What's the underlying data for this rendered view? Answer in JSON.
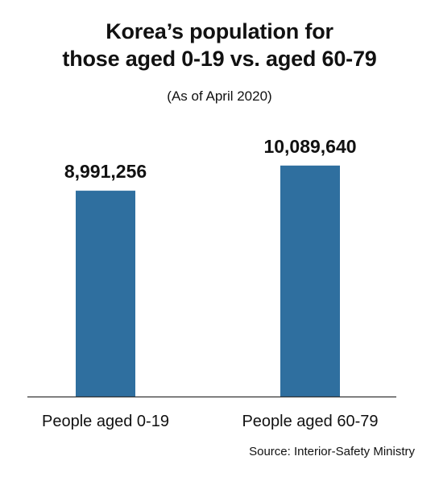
{
  "chart_data": {
    "type": "bar",
    "title_lines": [
      "Korea’s population for",
      "those aged 0-19 vs. aged 60-79"
    ],
    "subtitle": "(As of April 2020)",
    "categories": [
      "People aged 0-19",
      "People aged 60-79"
    ],
    "values": [
      8991256,
      10089640
    ],
    "value_labels": [
      "8,991,256",
      "10,089,640"
    ],
    "ylim": [
      0,
      11700000
    ],
    "grid": false,
    "legend": "none",
    "bar_color": "#2f6f9f",
    "source": "Source: Interior-Safety Ministry"
  }
}
